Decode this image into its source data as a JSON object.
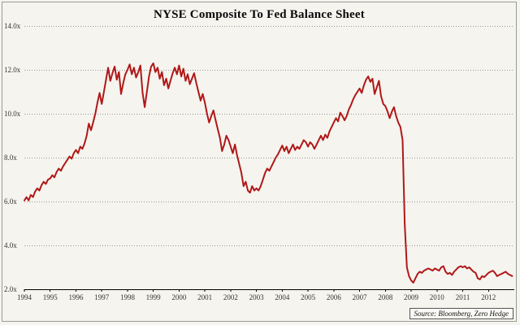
{
  "title": "NYSE Composite To Fed Balance Sheet",
  "source": "Source: Bloomberg, Zero Hedge",
  "colors": {
    "line": "#b01818",
    "background": "#f5f4ef",
    "grid": "#999999",
    "axis": "#000000",
    "tick_text": "#333333",
    "frame": "#9a9a94"
  },
  "chart_data": {
    "type": "line",
    "title": "NYSE Composite To Fed Balance Sheet",
    "xlabel": "",
    "ylabel": "",
    "xlim": [
      1994,
      2013
    ],
    "ylim": [
      2,
      14
    ],
    "grid": "horizontal-dotted",
    "legend": "none",
    "annotation": "Source: Bloomberg, Zero Hedge",
    "x_tick_labels": [
      "1994",
      "1995",
      "1996",
      "1997",
      "1998",
      "1999",
      "2000",
      "2001",
      "2002",
      "2003",
      "2004",
      "2005",
      "2006",
      "2007",
      "2008",
      "2009",
      "2010",
      "2011",
      "2012"
    ],
    "y_ticks": [
      2,
      4,
      6,
      8,
      10,
      12,
      14
    ],
    "y_tick_labels": [
      "2.0x",
      "4.0x",
      "6.0x",
      "8.0x",
      "10.0x",
      "12.0x",
      "14.0x"
    ],
    "series": [
      {
        "name": "NYSE Composite to Fed Balance Sheet ratio",
        "color": "#b01818",
        "start_year": 1994,
        "interval_months": 1,
        "values": [
          6.05,
          6.2,
          6.05,
          6.3,
          6.2,
          6.45,
          6.6,
          6.5,
          6.75,
          6.9,
          6.8,
          7.0,
          7.05,
          7.2,
          7.1,
          7.35,
          7.5,
          7.4,
          7.6,
          7.75,
          7.9,
          8.05,
          7.95,
          8.2,
          8.35,
          8.2,
          8.5,
          8.4,
          8.65,
          9.0,
          9.55,
          9.25,
          9.6,
          10.0,
          10.5,
          10.95,
          10.45,
          11.0,
          11.55,
          12.1,
          11.5,
          11.85,
          12.15,
          11.55,
          11.9,
          10.9,
          11.4,
          11.8,
          12.0,
          12.25,
          11.8,
          12.1,
          11.65,
          11.9,
          12.2,
          10.95,
          10.3,
          11.0,
          11.7,
          12.15,
          12.3,
          11.9,
          12.1,
          11.6,
          11.9,
          11.3,
          11.6,
          11.15,
          11.5,
          11.85,
          12.1,
          11.8,
          12.2,
          11.7,
          12.05,
          11.5,
          11.8,
          11.35,
          11.6,
          11.85,
          11.4,
          11.0,
          10.6,
          10.9,
          10.5,
          10.0,
          9.6,
          9.9,
          10.15,
          9.7,
          9.3,
          8.9,
          8.3,
          8.6,
          9.0,
          8.8,
          8.5,
          8.2,
          8.6,
          8.1,
          7.7,
          7.3,
          6.7,
          6.9,
          6.5,
          6.4,
          6.7,
          6.5,
          6.6,
          6.5,
          6.7,
          7.0,
          7.3,
          7.5,
          7.4,
          7.6,
          7.8,
          8.0,
          8.15,
          8.35,
          8.55,
          8.3,
          8.5,
          8.2,
          8.4,
          8.6,
          8.35,
          8.5,
          8.4,
          8.6,
          8.8,
          8.7,
          8.5,
          8.7,
          8.6,
          8.4,
          8.6,
          8.8,
          9.0,
          8.8,
          9.05,
          8.9,
          9.2,
          9.4,
          9.6,
          9.8,
          9.65,
          10.05,
          9.9,
          9.7,
          9.9,
          10.2,
          10.4,
          10.65,
          10.85,
          11.0,
          11.15,
          10.95,
          11.3,
          11.55,
          11.7,
          11.45,
          11.6,
          10.9,
          11.2,
          11.5,
          10.8,
          10.45,
          10.35,
          10.1,
          9.8,
          10.1,
          10.3,
          9.9,
          9.6,
          9.4,
          8.8,
          5.0,
          3.0,
          2.6,
          2.4,
          2.3,
          2.5,
          2.7,
          2.8,
          2.75,
          2.85,
          2.9,
          2.95,
          2.9,
          2.85,
          2.95,
          2.9,
          2.85,
          3.0,
          3.05,
          2.8,
          2.7,
          2.75,
          2.65,
          2.8,
          2.9,
          3.0,
          3.05,
          3.0,
          3.05,
          2.95,
          3.0,
          2.9,
          2.8,
          2.75,
          2.5,
          2.45,
          2.6,
          2.55,
          2.65,
          2.75,
          2.8,
          2.85,
          2.75,
          2.6,
          2.65,
          2.7,
          2.75,
          2.8,
          2.7,
          2.65,
          2.6
        ]
      }
    ]
  }
}
